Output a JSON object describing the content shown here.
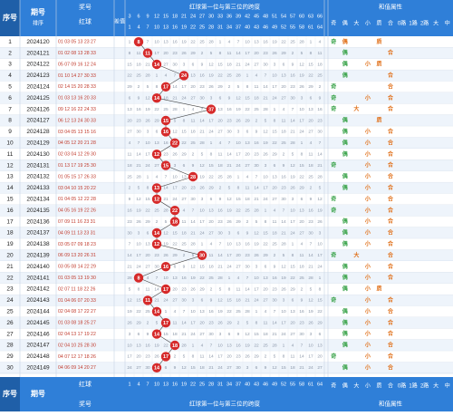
{
  "header": {
    "seq_label": "序号",
    "period_label": "期号",
    "period_sub": "排序",
    "draw_label": "奖号",
    "red_label": "红球",
    "diff_label": "差值",
    "span_label": "红球第一位与第三位的跨度",
    "attr_label": "和值属性",
    "span_values": [
      "3",
      "6",
      "9",
      "12",
      "15",
      "18",
      "21",
      "24",
      "27",
      "30",
      "33",
      "36",
      "39",
      "42",
      "45",
      "48",
      "51",
      "54",
      "57",
      "60",
      "63",
      "66"
    ],
    "attr_cols": [
      "奇",
      "偶",
      "大",
      "小",
      "质",
      "合",
      "0路",
      "1路",
      "2路",
      "大",
      "中"
    ]
  },
  "footer": {
    "seq_label": "序号",
    "period_label": "期号",
    "draw_label": "奖号",
    "red_label": "红球",
    "span_label": "红球第一位与第三位的跨度",
    "attr_label": "和值属性",
    "span_values": [
      "1",
      "4",
      "7",
      "10",
      "13",
      "16",
      "19",
      "22",
      "25",
      "28",
      "31",
      "34",
      "37",
      "40",
      "43",
      "46",
      "49",
      "52",
      "55",
      "58",
      "61",
      "64"
    ],
    "attr_cols": [
      "奇",
      "偶",
      "大",
      "小",
      "质",
      "合",
      "0路",
      "1路",
      "2路",
      "大",
      "中"
    ]
  },
  "rows": [
    {
      "seq": "1",
      "period": "2024120",
      "balls": "01 03 05 13 23 27",
      "ball": "8",
      "col": 1,
      "attr": "奇,偶,质"
    },
    {
      "seq": "2",
      "period": "2024121",
      "balls": "01 02 08 13 28 33",
      "ball": "11",
      "col": 2,
      "attr": "偶,合"
    },
    {
      "seq": "3",
      "period": "2024122",
      "balls": "05 07 09 16 12 24",
      "ball": "14",
      "col": 3,
      "attr": "偶,小,质"
    },
    {
      "seq": "4",
      "period": "2024123",
      "balls": "01 10 14 27 30 33",
      "ball": "24",
      "col": 6,
      "attr": "偶,合"
    },
    {
      "seq": "5",
      "period": "2024124",
      "balls": "02 14 15 20 28 33",
      "ball": "17",
      "col": 4,
      "attr": "奇,合"
    },
    {
      "seq": "6",
      "period": "2024125",
      "balls": "01 03 13 16 20 33",
      "ball": "14",
      "col": 3,
      "attr": "奇,小,合"
    },
    {
      "seq": "7",
      "period": "2024126",
      "balls": "09 12 16 22 24 33",
      "ball": "37",
      "col": 9,
      "attr": "奇,大,合"
    },
    {
      "seq": "8",
      "period": "2024127",
      "balls": "06 12 13 24 30 33",
      "ball": "15",
      "col": 4,
      "attr": "偶,质"
    },
    {
      "seq": "9",
      "period": "2024128",
      "balls": "03 04 05 13 15 16",
      "ball": "16",
      "col": 4,
      "attr": "偶,小,合"
    },
    {
      "seq": "10",
      "period": "2024129",
      "balls": "04 05 12 20 21 28",
      "ball": "22",
      "col": 5,
      "attr": "偶,小,合"
    },
    {
      "seq": "11",
      "period": "2024130",
      "balls": "02 03 04 12 29 30",
      "ball": "12",
      "col": 3,
      "attr": "偶,小,合"
    },
    {
      "seq": "12",
      "period": "2024131",
      "balls": "01 13 17 19 25 30",
      "ball": "15",
      "col": 4,
      "attr": "奇,小,合"
    },
    {
      "seq": "13",
      "period": "2024132",
      "balls": "01 05 15 17 26 33",
      "ball": "28",
      "col": 7,
      "attr": "偶,小,合"
    },
    {
      "seq": "14",
      "period": "2024133",
      "balls": "03 04 10 15 20 22",
      "ball": "13",
      "col": 3,
      "attr": "偶,小,合"
    },
    {
      "seq": "15",
      "period": "2024134",
      "balls": "01 04 05 12 22 28",
      "ball": "12",
      "col": 3,
      "attr": "奇,小,合"
    },
    {
      "seq": "16",
      "period": "2024135",
      "balls": "04 05 16 19 22 26",
      "ball": "22",
      "col": 5,
      "attr": "奇,小,合"
    },
    {
      "seq": "17",
      "period": "2024136",
      "balls": "07 09 11 16 23 31",
      "ball": "18",
      "col": 5,
      "attr": "偶,小,合"
    },
    {
      "seq": "18",
      "period": "2024137",
      "balls": "04 09 11 13 23 31",
      "ball": "14",
      "col": 3,
      "attr": "偶,小,合"
    },
    {
      "seq": "19",
      "period": "2024138",
      "balls": "03 05 07 09 18 23",
      "ball": "12",
      "col": 3,
      "attr": "偶,小,合"
    },
    {
      "seq": "20",
      "period": "2024139",
      "balls": "06 09 13 20 26 31",
      "ball": "30",
      "col": 8,
      "attr": "奇,大,合"
    },
    {
      "seq": "21",
      "period": "2024140",
      "balls": "03 05 08 14 22 29",
      "ball": "16",
      "col": 4,
      "attr": "偶,小,合"
    },
    {
      "seq": "22",
      "period": "2024141",
      "balls": "01 03 05 13 19 30",
      "ball": "8",
      "col": 1,
      "attr": "偶,小,合"
    },
    {
      "seq": "23",
      "period": "2024142",
      "balls": "02 07 11 18 22 26",
      "ball": "17",
      "col": 4,
      "attr": "偶,小,质"
    },
    {
      "seq": "24",
      "period": "2024143",
      "balls": "01 04 06 07 20 33",
      "ball": "11",
      "col": 2,
      "attr": "奇,小,合"
    },
    {
      "seq": "25",
      "period": "2024144",
      "balls": "02 04 08 17 22 27",
      "ball": "14",
      "col": 3,
      "attr": "偶,小,合"
    },
    {
      "seq": "26",
      "period": "2024145",
      "balls": "01 03 08 18 25 27",
      "ball": "17",
      "col": 4,
      "attr": "偶,小,合"
    },
    {
      "seq": "27",
      "period": "2024146",
      "balls": "02 04 13 17 19 22",
      "ball": "14",
      "col": 3,
      "attr": "偶,小,合"
    },
    {
      "seq": "28",
      "period": "2024147",
      "balls": "02 04 10 25 28 30",
      "ball": "18",
      "col": 5,
      "attr": "偶,小,合"
    },
    {
      "seq": "29",
      "period": "2024148",
      "balls": "04 07 12 17 18 26",
      "ball": "17",
      "col": 4,
      "attr": "奇,小,合"
    },
    {
      "seq": "30",
      "period": "2024149",
      "balls": "04 06 09 14 20 27",
      "ball": "14",
      "col": 3,
      "attr": "偶,小,合"
    }
  ],
  "colors": {
    "header_bg": "#2f7fd8",
    "header_text": "#ffffff",
    "grid": "#c8d4e4",
    "row_alt": "#eef4fb",
    "ball_red": "#d62a2a",
    "seq_bg": "#1f5fa8",
    "attr_green": "#3aa34a",
    "attr_orange": "#e0701a"
  }
}
